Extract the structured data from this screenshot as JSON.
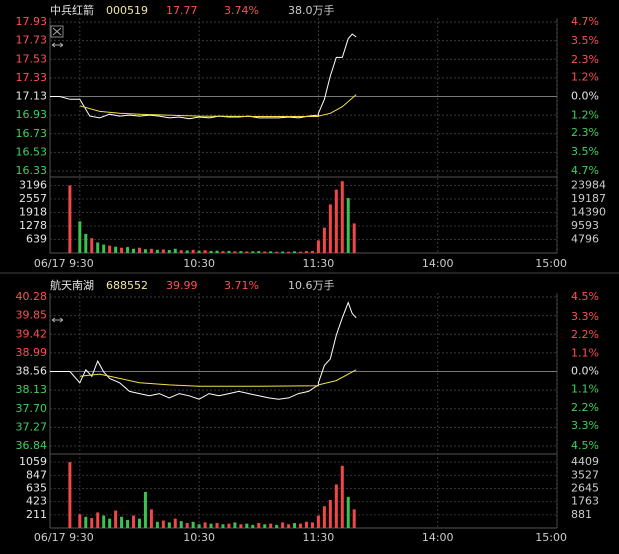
{
  "chart_data": [
    {
      "type": "intraday",
      "header": {
        "name": "中兵红箭",
        "code": "000519",
        "price": "17.77",
        "change": "3.74%",
        "turnover": "38.0万手"
      },
      "ylim": [
        16.33,
        17.93
      ],
      "yticks": [
        17.93,
        17.73,
        17.53,
        17.33,
        17.13,
        16.93,
        16.73,
        16.53,
        16.33
      ],
      "y2lim": [
        -4.7,
        4.7
      ],
      "y2ticks": [
        {
          "value": 4.7,
          "label": "4.7%"
        },
        {
          "value": 3.5,
          "label": "3.5%"
        },
        {
          "value": 2.3,
          "label": "2.3%"
        },
        {
          "value": 1.2,
          "label": "1.2%"
        },
        {
          "value": 0,
          "label": "0.0%"
        },
        {
          "value": -1.2,
          "label": "1.2%"
        },
        {
          "value": -2.3,
          "label": "2.3%"
        },
        {
          "value": -3.5,
          "label": "3.5%"
        },
        {
          "value": -4.7,
          "label": "4.7%"
        }
      ],
      "xticks": [
        {
          "value": "9:30",
          "label": "06/17 9:30"
        },
        "10:30",
        "11:30",
        "14:00",
        "15:00"
      ],
      "lines": [
        {
          "color": "#ffffff",
          "x": [
            "9:15",
            "9:20",
            "9:25",
            "9:30",
            "9:35",
            "9:40",
            "9:45",
            "9:50",
            "9:55",
            "10:00",
            "10:05",
            "10:10",
            "10:15",
            "10:20",
            "10:25",
            "10:30",
            "10:35",
            "10:40",
            "10:45",
            "10:50",
            "10:55",
            "11:00",
            "11:05",
            "11:10",
            "11:15",
            "11:20",
            "11:25",
            "11:30",
            "13:00",
            "13:03",
            "13:06",
            "13:09",
            "13:12",
            "13:15",
            "13:17",
            "13:19"
          ],
          "values": [
            17.13,
            17.13,
            17.1,
            17.1,
            16.92,
            16.9,
            16.94,
            16.92,
            16.93,
            16.92,
            16.93,
            16.92,
            16.9,
            16.91,
            16.89,
            16.91,
            16.9,
            16.92,
            16.91,
            16.91,
            16.92,
            16.9,
            16.9,
            16.9,
            16.91,
            16.9,
            16.92,
            16.93,
            16.95,
            17.1,
            17.35,
            17.55,
            17.55,
            17.75,
            17.8,
            17.77
          ]
        },
        {
          "color": "#f2e14b",
          "x": [
            "9:30",
            "9:40",
            "9:50",
            "10:00",
            "10:30",
            "11:00",
            "11:30",
            "13:00",
            "13:06",
            "13:12",
            "13:19"
          ],
          "values": [
            17.03,
            16.97,
            16.95,
            16.94,
            16.92,
            16.915,
            16.915,
            16.92,
            16.95,
            17.02,
            17.15
          ]
        }
      ],
      "volume": {
        "ylim": [
          0,
          3835
        ],
        "yticks": [
          3196,
          2557,
          1918,
          1278,
          639
        ],
        "y2lim": [
          0,
          28781
        ],
        "y2ticks": [
          23984,
          19187,
          14390,
          9593,
          4796
        ],
        "x": [
          "9:25",
          "9:30",
          "9:33",
          "9:36",
          "9:39",
          "9:42",
          "9:45",
          "9:48",
          "9:51",
          "9:54",
          "9:57",
          "10:00",
          "10:03",
          "10:06",
          "10:09",
          "10:12",
          "10:15",
          "10:18",
          "10:21",
          "10:24",
          "10:27",
          "10:30",
          "10:33",
          "10:36",
          "10:39",
          "10:42",
          "10:45",
          "10:48",
          "10:51",
          "10:54",
          "10:57",
          "11:00",
          "11:03",
          "11:06",
          "11:09",
          "11:12",
          "11:15",
          "11:18",
          "11:21",
          "11:24",
          "11:27",
          "13:00",
          "13:03",
          "13:06",
          "13:09",
          "13:12",
          "13:15",
          "13:18"
        ],
        "values": [
          3196,
          1500,
          900,
          700,
          500,
          400,
          350,
          300,
          250,
          280,
          200,
          250,
          180,
          200,
          150,
          170,
          140,
          200,
          130,
          120,
          150,
          110,
          130,
          100,
          110,
          90,
          100,
          80,
          90,
          70,
          80,
          90,
          70,
          80,
          60,
          70,
          60,
          80,
          60,
          90,
          100,
          600,
          1200,
          2300,
          3000,
          3400,
          2600,
          1400
        ],
        "colors": [
          "#f04848",
          "#3cc24f",
          "#3cc24f",
          "#f04848",
          "#3cc24f",
          "#3cc24f",
          "#f04848",
          "#3cc24f",
          "#f04848",
          "#3cc24f",
          "#3cc24f",
          "#f04848",
          "#3cc24f",
          "#f04848",
          "#3cc24f",
          "#f04848",
          "#3cc24f",
          "#3cc24f",
          "#f04848",
          "#3cc24f",
          "#f04848",
          "#3cc24f",
          "#f04848",
          "#3cc24f",
          "#3cc24f",
          "#f04848",
          "#3cc24f",
          "#f04848",
          "#3cc24f",
          "#f04848",
          "#3cc24f",
          "#3cc24f",
          "#f04848",
          "#3cc24f",
          "#f04848",
          "#3cc24f",
          "#f04848",
          "#3cc24f",
          "#f04848",
          "#f04848",
          "#f04848",
          "#f04848",
          "#f04848",
          "#f04848",
          "#f04848",
          "#f04848",
          "#3cc24f",
          "#f04848"
        ]
      }
    },
    {
      "type": "intraday",
      "header": {
        "name": "航天南湖",
        "code": "688552",
        "price": "39.99",
        "change": "3.71%",
        "turnover": "10.6万手"
      },
      "ylim": [
        36.84,
        40.28
      ],
      "yticks": [
        40.28,
        39.85,
        39.42,
        38.99,
        38.56,
        38.13,
        {
          "value": 37.7,
          "label": "37.70"
        },
        37.27,
        36.84
      ],
      "y2lim": [
        -4.5,
        4.5
      ],
      "y2ticks": [
        {
          "value": 4.5,
          "label": "4.5%"
        },
        {
          "value": 3.3,
          "label": "3.3%"
        },
        {
          "value": 2.2,
          "label": "2.2%"
        },
        {
          "value": 1.1,
          "label": "1.1%"
        },
        {
          "value": 0,
          "label": "0.0%"
        },
        {
          "value": -1.1,
          "label": "1.1%"
        },
        {
          "value": -2.2,
          "label": "2.2%"
        },
        {
          "value": -3.3,
          "label": "3.3%"
        },
        {
          "value": -4.5,
          "label": "4.5%"
        }
      ],
      "xticks": [
        {
          "value": "9:30",
          "label": "06/17 9:30"
        },
        "10:30",
        "11:30",
        "14:00",
        "15:00"
      ],
      "lines": [
        {
          "color": "#ffffff",
          "x": [
            "9:15",
            "9:20",
            "9:25",
            "9:30",
            "9:33",
            "9:36",
            "9:39",
            "9:42",
            "9:45",
            "9:50",
            "9:55",
            "10:00",
            "10:05",
            "10:10",
            "10:15",
            "10:20",
            "10:25",
            "10:30",
            "10:35",
            "10:40",
            "10:45",
            "10:50",
            "10:55",
            "11:00",
            "11:05",
            "11:10",
            "11:15",
            "11:20",
            "11:25",
            "11:30",
            "13:00",
            "13:03",
            "13:06",
            "13:09",
            "13:12",
            "13:15",
            "13:17",
            "13:19"
          ],
          "values": [
            38.56,
            38.56,
            38.56,
            38.3,
            38.6,
            38.45,
            38.8,
            38.55,
            38.4,
            38.3,
            38.1,
            38.05,
            38.0,
            38.05,
            37.95,
            38.05,
            38.0,
            37.92,
            38.05,
            38.0,
            38.05,
            38.1,
            38.05,
            38.0,
            37.95,
            37.92,
            37.95,
            38.05,
            38.1,
            38.25,
            38.3,
            38.7,
            38.85,
            39.4,
            39.8,
            40.15,
            39.9,
            39.8
          ]
        },
        {
          "color": "#f2e14b",
          "x": [
            "9:30",
            "9:40",
            "9:50",
            "10:00",
            "10:15",
            "10:30",
            "11:00",
            "11:30",
            "13:00",
            "13:09",
            "13:19"
          ],
          "values": [
            38.45,
            38.5,
            38.4,
            38.3,
            38.25,
            38.22,
            38.22,
            38.23,
            38.25,
            38.35,
            38.6
          ]
        }
      ],
      "volume": {
        "ylim": [
          0,
          1270
        ],
        "yticks": [
          1059,
          847,
          635,
          423,
          211
        ],
        "y2lim": [
          0,
          5290
        ],
        "y2ticks": [
          4409,
          3527,
          2645,
          1763,
          881
        ],
        "x": [
          "9:25",
          "9:30",
          "9:33",
          "9:36",
          "9:39",
          "9:42",
          "9:45",
          "9:48",
          "9:51",
          "9:54",
          "9:57",
          "10:00",
          "10:03",
          "10:06",
          "10:09",
          "10:12",
          "10:15",
          "10:18",
          "10:21",
          "10:24",
          "10:27",
          "10:30",
          "10:33",
          "10:36",
          "10:39",
          "10:42",
          "10:45",
          "10:48",
          "10:51",
          "10:54",
          "10:57",
          "11:00",
          "11:03",
          "11:06",
          "11:09",
          "11:12",
          "11:15",
          "11:18",
          "11:21",
          "11:24",
          "11:27",
          "13:00",
          "13:03",
          "13:06",
          "13:09",
          "13:12",
          "13:15",
          "13:18"
        ],
        "values": [
          1059,
          220,
          180,
          160,
          250,
          200,
          150,
          280,
          180,
          130,
          200,
          150,
          580,
          300,
          100,
          120,
          90,
          150,
          110,
          80,
          100,
          60,
          90,
          70,
          80,
          60,
          70,
          90,
          60,
          70,
          50,
          80,
          60,
          70,
          50,
          90,
          60,
          80,
          70,
          100,
          90,
          200,
          350,
          450,
          700,
          1000,
          500,
          300
        ],
        "colors": [
          "#f04848",
          "#f04848",
          "#3cc24f",
          "#f04848",
          "#f04848",
          "#3cc24f",
          "#3cc24f",
          "#f04848",
          "#3cc24f",
          "#3cc24f",
          "#f04848",
          "#3cc24f",
          "#3cc24f",
          "#f04848",
          "#3cc24f",
          "#f04848",
          "#3cc24f",
          "#f04848",
          "#3cc24f",
          "#f04848",
          "#3cc24f",
          "#3cc24f",
          "#f04848",
          "#3cc24f",
          "#f04848",
          "#3cc24f",
          "#f04848",
          "#3cc24f",
          "#f04848",
          "#3cc24f",
          "#3cc24f",
          "#f04848",
          "#3cc24f",
          "#f04848",
          "#3cc24f",
          "#f04848",
          "#f04848",
          "#3cc24f",
          "#f04848",
          "#f04848",
          "#f04848",
          "#f04848",
          "#f04848",
          "#f04848",
          "#f04848",
          "#f04848",
          "#3cc24f",
          "#f04848"
        ]
      }
    }
  ]
}
